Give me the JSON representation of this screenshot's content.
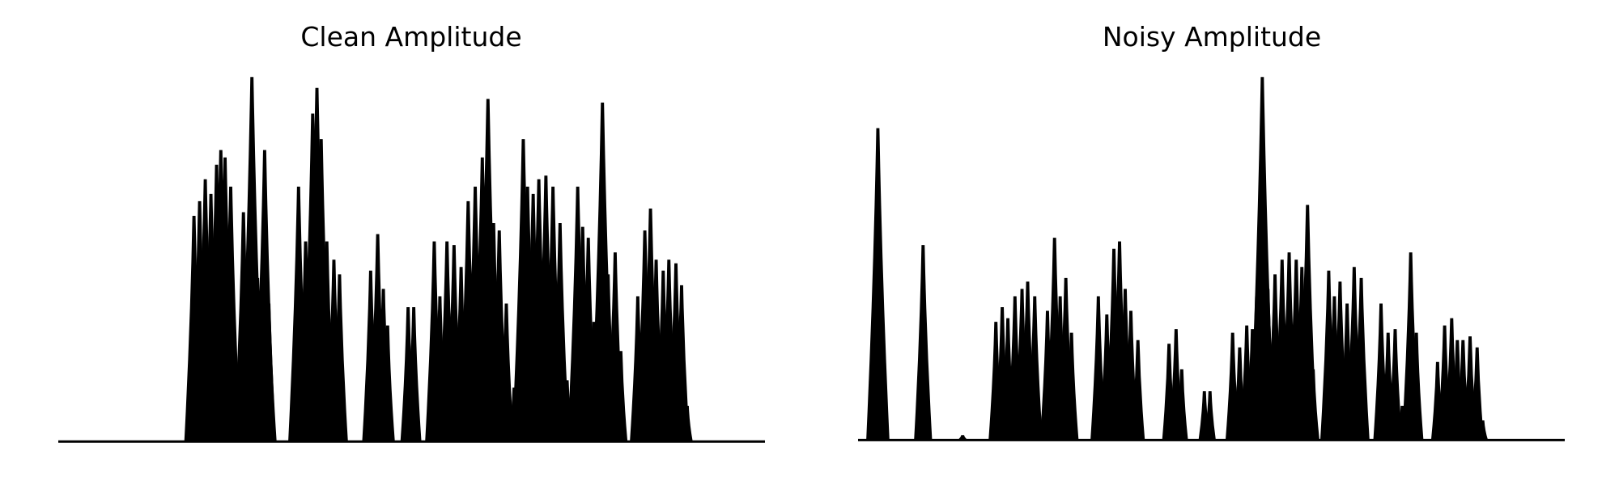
{
  "figure": {
    "background": "#ffffff",
    "line_color": "#000000"
  },
  "chart_data": [
    {
      "type": "area",
      "title": "Clean Amplitude",
      "xlabel": "",
      "ylabel": "",
      "axes_visible": false,
      "grid": false,
      "x_range": [
        0,
        1
      ],
      "ylim": [
        0,
        1.0
      ],
      "baseline": 0.004,
      "segments": [
        {
          "peaks": [
            [
              0.192,
              0.62
            ],
            [
              0.2,
              0.66
            ],
            [
              0.208,
              0.72
            ],
            [
              0.216,
              0.68
            ],
            [
              0.224,
              0.76
            ],
            [
              0.23,
              0.8
            ],
            [
              0.236,
              0.78
            ],
            [
              0.244,
              0.7
            ]
          ]
        },
        {
          "peaks": [
            [
              0.262,
              0.63
            ],
            [
              0.274,
              1.0
            ],
            [
              0.282,
              0.45
            ],
            [
              0.292,
              0.8
            ],
            [
              0.298,
              0.38
            ]
          ]
        },
        {
          "peaks": [
            [
              0.34,
              0.7
            ],
            [
              0.35,
              0.55
            ],
            [
              0.36,
              0.9
            ],
            [
              0.366,
              0.97
            ],
            [
              0.372,
              0.83
            ],
            [
              0.38,
              0.55
            ],
            [
              0.39,
              0.5
            ],
            [
              0.398,
              0.46
            ]
          ]
        },
        {
          "peaks": [
            [
              0.442,
              0.47
            ],
            [
              0.452,
              0.57
            ],
            [
              0.46,
              0.42
            ],
            [
              0.466,
              0.32
            ]
          ]
        },
        {
          "peaks": [
            [
              0.495,
              0.37
            ],
            [
              0.503,
              0.37
            ]
          ]
        },
        {
          "peaks": [
            [
              0.532,
              0.55
            ],
            [
              0.54,
              0.4
            ],
            [
              0.55,
              0.55
            ],
            [
              0.56,
              0.54
            ],
            [
              0.57,
              0.48
            ],
            [
              0.58,
              0.66
            ],
            [
              0.59,
              0.7
            ],
            [
              0.6,
              0.78
            ],
            [
              0.608,
              0.94
            ],
            [
              0.616,
              0.6
            ],
            [
              0.624,
              0.58
            ],
            [
              0.634,
              0.38
            ],
            [
              0.645,
              0.15
            ]
          ]
        },
        {
          "peaks": [
            [
              0.658,
              0.83
            ],
            [
              0.664,
              0.7
            ],
            [
              0.672,
              0.68
            ],
            [
              0.68,
              0.72
            ],
            [
              0.69,
              0.73
            ],
            [
              0.7,
              0.7
            ],
            [
              0.71,
              0.6
            ],
            [
              0.72,
              0.17
            ]
          ]
        },
        {
          "peaks": [
            [
              0.735,
              0.7
            ],
            [
              0.742,
              0.59
            ],
            [
              0.75,
              0.56
            ],
            [
              0.758,
              0.33
            ],
            [
              0.77,
              0.93
            ],
            [
              0.778,
              0.46
            ],
            [
              0.788,
              0.52
            ],
            [
              0.796,
              0.25
            ]
          ]
        },
        {
          "peaks": [
            [
              0.82,
              0.4
            ],
            [
              0.83,
              0.58
            ],
            [
              0.838,
              0.64
            ],
            [
              0.846,
              0.5
            ],
            [
              0.856,
              0.47
            ],
            [
              0.864,
              0.5
            ],
            [
              0.874,
              0.49
            ],
            [
              0.882,
              0.43
            ],
            [
              0.89,
              0.1
            ]
          ]
        }
      ]
    },
    {
      "type": "area",
      "title": "Noisy Amplitude",
      "xlabel": "",
      "ylabel": "",
      "axes_visible": false,
      "grid": false,
      "x_range": [
        0,
        1
      ],
      "ylim": [
        0,
        1.0
      ],
      "baseline": 0.008,
      "segments": [
        {
          "peaks": [
            [
              0.028,
              0.86
            ]
          ]
        },
        {
          "peaks": [
            [
              0.092,
              0.54
            ]
          ]
        },
        {
          "peaks": [
            [
              0.148,
              0.02
            ]
          ]
        },
        {
          "peaks": [
            [
              0.195,
              0.33
            ],
            [
              0.204,
              0.37
            ],
            [
              0.212,
              0.34
            ],
            [
              0.222,
              0.4
            ],
            [
              0.232,
              0.42
            ],
            [
              0.24,
              0.44
            ],
            [
              0.25,
              0.4
            ]
          ]
        },
        {
          "peaks": [
            [
              0.268,
              0.36
            ],
            [
              0.278,
              0.56
            ],
            [
              0.286,
              0.4
            ],
            [
              0.294,
              0.45
            ],
            [
              0.302,
              0.3
            ]
          ]
        },
        {
          "peaks": [
            [
              0.34,
              0.4
            ],
            [
              0.352,
              0.35
            ],
            [
              0.362,
              0.53
            ],
            [
              0.37,
              0.55
            ],
            [
              0.378,
              0.42
            ],
            [
              0.386,
              0.36
            ],
            [
              0.396,
              0.28
            ]
          ]
        },
        {
          "peaks": [
            [
              0.44,
              0.27
            ],
            [
              0.45,
              0.31
            ],
            [
              0.458,
              0.2
            ]
          ]
        },
        {
          "peaks": [
            [
              0.49,
              0.14
            ],
            [
              0.498,
              0.14
            ]
          ]
        },
        {
          "peaks": [
            [
              0.53,
              0.3
            ],
            [
              0.54,
              0.26
            ],
            [
              0.55,
              0.32
            ],
            [
              0.558,
              0.31
            ],
            [
              0.564,
              0.4
            ],
            [
              0.572,
              1.0
            ],
            [
              0.58,
              0.42
            ],
            [
              0.59,
              0.46
            ],
            [
              0.6,
              0.5
            ],
            [
              0.61,
              0.52
            ],
            [
              0.62,
              0.5
            ],
            [
              0.628,
              0.48
            ],
            [
              0.636,
              0.65
            ],
            [
              0.644,
              0.2
            ]
          ]
        },
        {
          "peaks": [
            [
              0.666,
              0.47
            ],
            [
              0.674,
              0.4
            ],
            [
              0.682,
              0.44
            ],
            [
              0.692,
              0.38
            ],
            [
              0.702,
              0.48
            ],
            [
              0.712,
              0.45
            ]
          ]
        },
        {
          "peaks": [
            [
              0.74,
              0.38
            ],
            [
              0.75,
              0.3
            ],
            [
              0.76,
              0.31
            ],
            [
              0.77,
              0.1
            ],
            [
              0.782,
              0.52
            ],
            [
              0.79,
              0.3
            ]
          ]
        },
        {
          "peaks": [
            [
              0.82,
              0.22
            ],
            [
              0.83,
              0.32
            ],
            [
              0.84,
              0.34
            ],
            [
              0.848,
              0.28
            ],
            [
              0.856,
              0.28
            ],
            [
              0.866,
              0.29
            ],
            [
              0.876,
              0.26
            ],
            [
              0.884,
              0.06
            ]
          ]
        }
      ]
    }
  ]
}
